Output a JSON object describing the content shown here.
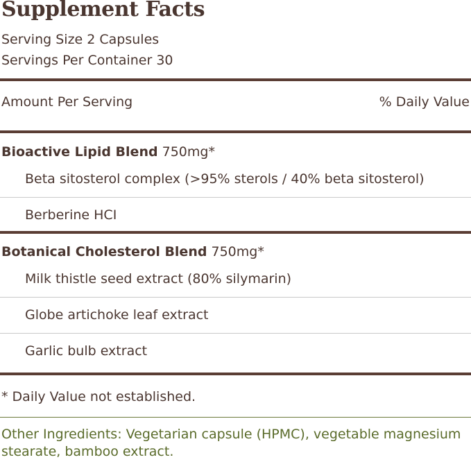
{
  "title": "Supplement Facts",
  "serving_size": "Serving Size 2 Capsules",
  "servings_per_container": "Servings Per Container 30",
  "header": {
    "amount_per_serving": "Amount Per Serving",
    "daily_value": "% Daily Value"
  },
  "blends": [
    {
      "name": "Bioactive Lipid Blend",
      "amount": "750mg*",
      "ingredients": [
        "Beta sitosterol complex (>95% sterols / 40% beta sitosterol)",
        "Berberine HCI"
      ]
    },
    {
      "name": "Botanical Cholesterol Blend",
      "amount": "750mg*",
      "ingredients": [
        "Milk thistle seed extract (80% silymarin)",
        "Globe artichoke leaf extract",
        "Garlic bulb extract"
      ]
    }
  ],
  "footnote": "* Daily Value not established.",
  "other_ingredients": "Other Ingredients: Vegetarian capsule (HPMC), vegetable magnesium stearate, bamboo extract.",
  "colors": {
    "text": "#4a3630",
    "rule": "#5a3d34",
    "other_ingredients": "#5a6b2a"
  }
}
